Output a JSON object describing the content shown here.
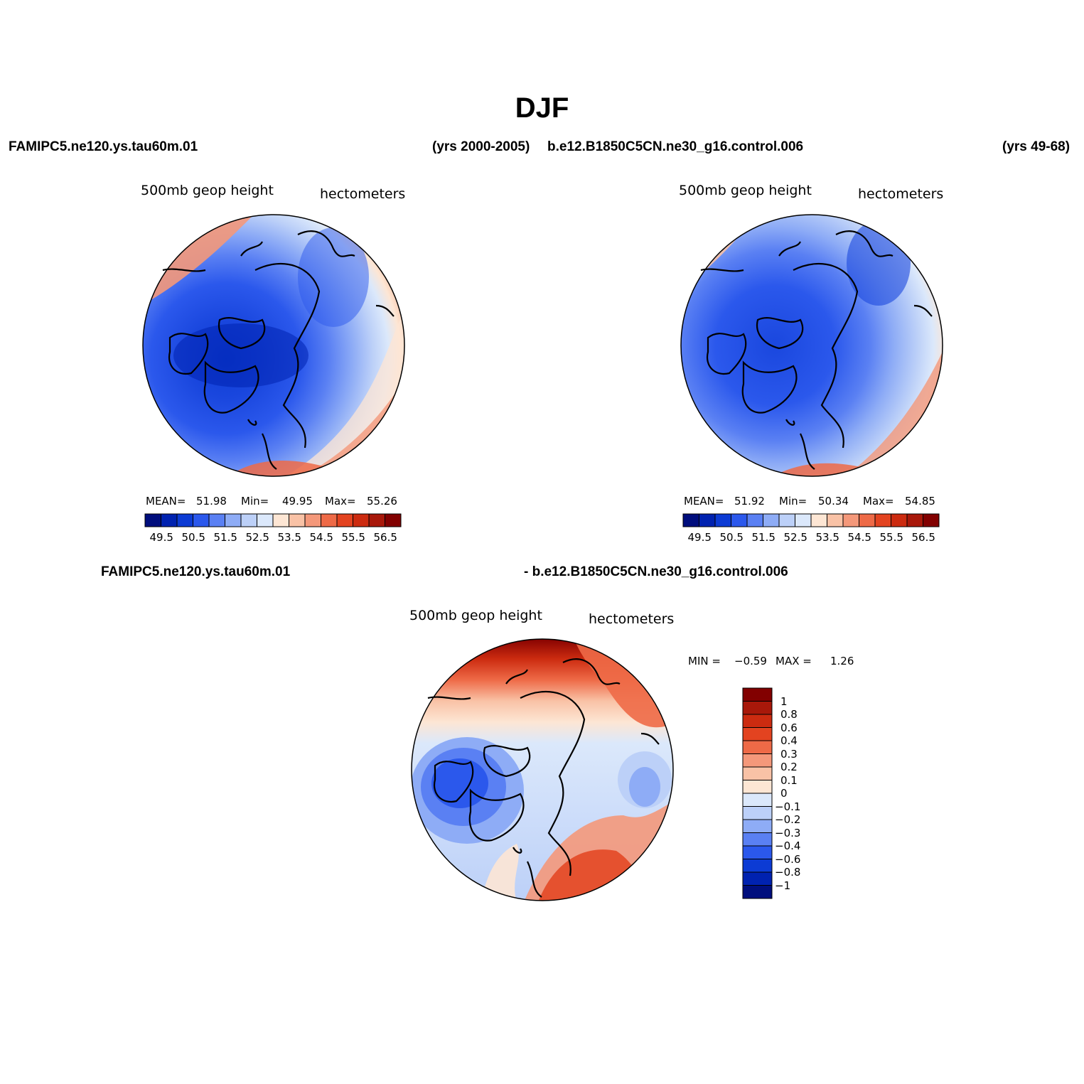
{
  "title": "DJF",
  "header": {
    "case1": "FAMIPC5.ne120.ys.tau60m.01",
    "years1": "(yrs 2000-2005)",
    "case2": "b.e12.B1850C5CN.ne30_g16.control.006",
    "years2": "(yrs 49-68)"
  },
  "diff_header": {
    "left": "FAMIPC5.ne120.ys.tau60m.01",
    "right": "- b.e12.B1850C5CN.ne30_g16.control.006"
  },
  "panels": [
    {
      "variable": "500mb geop height",
      "units": "hectometers",
      "mean_label": "MEAN=",
      "mean": "51.98",
      "min_label": "Min=",
      "min": "49.95",
      "max_label": "Max=",
      "max": "55.26"
    },
    {
      "variable": "500mb geop height",
      "units": "hectometers",
      "mean_label": "MEAN=",
      "mean": "51.92",
      "min_label": "Min=",
      "min": "50.34",
      "max_label": "Max=",
      "max": "54.85"
    }
  ],
  "diff_panel": {
    "variable": "500mb geop height",
    "units": "hectometers",
    "min_label": "MIN =",
    "min": "−0.59",
    "max_label": "MAX =",
    "max": "1.26"
  },
  "colorbar_h": {
    "colors": [
      "#000e7d",
      "#0022b0",
      "#0c3bd4",
      "#2b58ec",
      "#5a80f3",
      "#8eacf6",
      "#bcd0f8",
      "#dbe8fb",
      "#fde6d4",
      "#f9c2a6",
      "#f4987a",
      "#ee6a47",
      "#e34320",
      "#cc2b10",
      "#a8180a",
      "#820000"
    ],
    "labels": [
      "49.5",
      "50.5",
      "51.5",
      "52.5",
      "53.5",
      "54.5",
      "55.5",
      "56.5"
    ]
  },
  "colorbar_v": {
    "colors": [
      "#000e7d",
      "#0022b0",
      "#0c3bd4",
      "#2b58ec",
      "#5a80f3",
      "#8eacf6",
      "#bcd0f8",
      "#dbe8fb",
      "#fde6d4",
      "#f9c2a6",
      "#f4987a",
      "#ee6a47",
      "#e34320",
      "#cc2b10",
      "#a8180a",
      "#820000"
    ],
    "labels": [
      "1",
      "0.8",
      "0.6",
      "0.4",
      "0.3",
      "0.2",
      "0.1",
      "0",
      "−0.1",
      "−0.2",
      "−0.3",
      "−0.4",
      "−0.6",
      "−0.8",
      "−1"
    ]
  }
}
